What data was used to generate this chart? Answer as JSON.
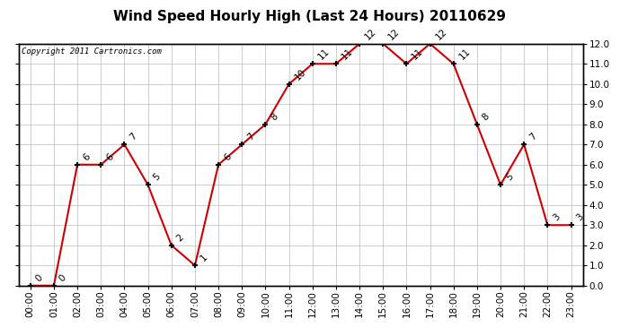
{
  "title": "Wind Speed Hourly High (Last 24 Hours) 20110629",
  "copyright": "Copyright 2011 Cartronics.com",
  "hours": [
    "00:00",
    "01:00",
    "02:00",
    "03:00",
    "04:00",
    "05:00",
    "06:00",
    "07:00",
    "08:00",
    "09:00",
    "10:00",
    "11:00",
    "12:00",
    "13:00",
    "14:00",
    "15:00",
    "16:00",
    "17:00",
    "18:00",
    "19:00",
    "20:00",
    "21:00",
    "22:00",
    "23:00"
  ],
  "values": [
    0,
    0,
    6,
    6,
    7,
    5,
    2,
    1,
    6,
    7,
    8,
    10,
    11,
    11,
    12,
    12,
    11,
    12,
    11,
    8,
    5,
    7,
    3,
    3
  ],
  "line_color": "#cc0000",
  "bg_color": "#ffffff",
  "grid_color": "#bbbbbb",
  "title_color": "#000000",
  "ylim": [
    0.0,
    12.0
  ],
  "yticks": [
    0.0,
    1.0,
    2.0,
    3.0,
    4.0,
    5.0,
    6.0,
    7.0,
    8.0,
    9.0,
    10.0,
    11.0,
    12.0
  ],
  "title_fontsize": 11,
  "label_fontsize": 7.5,
  "annotation_fontsize": 7.5
}
